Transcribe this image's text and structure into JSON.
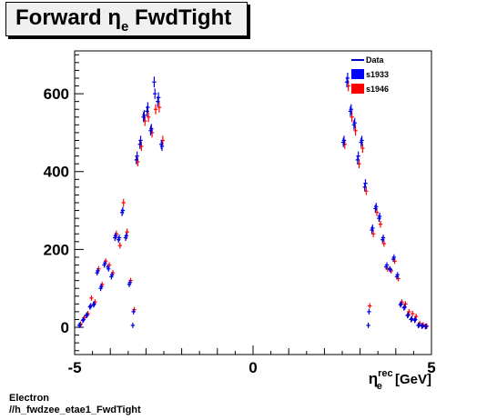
{
  "title": {
    "main": "Forward",
    "symbol": "η",
    "subscript": "e",
    "suffix": "FwdTight"
  },
  "footer": {
    "line1": "Electron",
    "line2": "//h_fwdzee_etae1_FwdTight"
  },
  "chart_data": {
    "type": "scatter",
    "xlabel": {
      "symbol": "η",
      "subscript": "e",
      "superscript": "rec",
      "unit": "[GeV]"
    },
    "ylabel": "",
    "xlim": [
      -5,
      5
    ],
    "ylim": [
      -70,
      710
    ],
    "x_ticks": [
      -5,
      0,
      5
    ],
    "y_ticks": [
      0,
      200,
      400,
      600
    ],
    "grid": false,
    "legend_position": "top-right",
    "colors": {
      "Data": "#0000cc",
      "s1933": "#0000ff",
      "s1946": "#ff0000"
    },
    "series": [
      {
        "name": "Data",
        "x": [
          -4.85,
          -4.75,
          -4.65,
          -4.55,
          -4.45,
          -4.35,
          -4.25,
          -4.15,
          -4.05,
          -3.95,
          -3.85,
          -3.75,
          -3.65,
          -3.55,
          -3.45,
          -3.35,
          -3.25,
          -3.15,
          -3.05,
          -2.95,
          -2.85,
          -2.75,
          -2.65,
          -2.55,
          2.55,
          2.65,
          2.75,
          2.85,
          2.95,
          3.05,
          3.15,
          3.25,
          3.35,
          3.45,
          3.55,
          3.65,
          3.75,
          3.85,
          3.95,
          4.05,
          4.15,
          4.25,
          4.35,
          4.45,
          4.55,
          4.65,
          4.75,
          4.85
        ],
        "y": [
          5,
          18,
          30,
          52,
          58,
          140,
          100,
          160,
          155,
          130,
          230,
          225,
          295,
          230,
          110,
          5,
          430,
          470,
          540,
          555,
          505,
          630,
          580,
          470,
          475,
          630,
          555,
          520,
          430,
          475,
          360,
          5,
          250,
          305,
          280,
          225,
          155,
          150,
          175,
          130,
          58,
          50,
          30,
          20,
          18,
          5,
          3,
          2
        ]
      },
      {
        "name": "s1933",
        "x": [
          -4.85,
          -4.75,
          -4.65,
          -4.55,
          -4.45,
          -4.35,
          -4.25,
          -4.15,
          -4.05,
          -3.95,
          -3.85,
          -3.75,
          -3.65,
          -3.55,
          -3.45,
          -3.35,
          -3.25,
          -3.15,
          -3.05,
          -2.95,
          -2.85,
          -2.75,
          -2.65,
          -2.55,
          2.55,
          2.65,
          2.75,
          2.85,
          2.95,
          3.05,
          3.15,
          3.25,
          3.35,
          3.45,
          3.55,
          3.65,
          3.75,
          3.85,
          3.95,
          4.05,
          4.15,
          4.25,
          4.35,
          4.45,
          4.55,
          4.65,
          4.75,
          4.85
        ],
        "y": [
          6,
          20,
          32,
          55,
          60,
          145,
          105,
          165,
          150,
          135,
          235,
          230,
          300,
          235,
          115,
          40,
          440,
          480,
          545,
          565,
          510,
          600,
          590,
          465,
          480,
          640,
          560,
          525,
          440,
          480,
          370,
          40,
          255,
          310,
          285,
          230,
          160,
          148,
          180,
          135,
          60,
          52,
          32,
          22,
          20,
          6,
          4,
          2
        ]
      },
      {
        "name": "s1946",
        "x": [
          -4.85,
          -4.75,
          -4.65,
          -4.55,
          -4.45,
          -4.35,
          -4.25,
          -4.15,
          -4.05,
          -3.95,
          -3.85,
          -3.75,
          -3.65,
          -3.55,
          -3.45,
          -3.35,
          -3.25,
          -3.15,
          -3.05,
          -2.95,
          -2.85,
          -2.75,
          -2.65,
          -2.55,
          2.55,
          2.65,
          2.75,
          2.85,
          2.95,
          3.05,
          3.15,
          3.25,
          3.35,
          3.45,
          3.55,
          3.65,
          3.75,
          3.85,
          3.95,
          4.05,
          4.15,
          4.25,
          4.35,
          4.45,
          4.55,
          4.65,
          4.75,
          4.85
        ],
        "y": [
          8,
          25,
          35,
          75,
          65,
          150,
          110,
          170,
          160,
          140,
          240,
          210,
          320,
          245,
          120,
          45,
          425,
          465,
          530,
          540,
          500,
          560,
          565,
          480,
          470,
          620,
          540,
          505,
          420,
          460,
          350,
          55,
          240,
          295,
          265,
          215,
          150,
          145,
          170,
          125,
          65,
          60,
          40,
          35,
          28,
          10,
          6,
          3
        ]
      }
    ]
  }
}
